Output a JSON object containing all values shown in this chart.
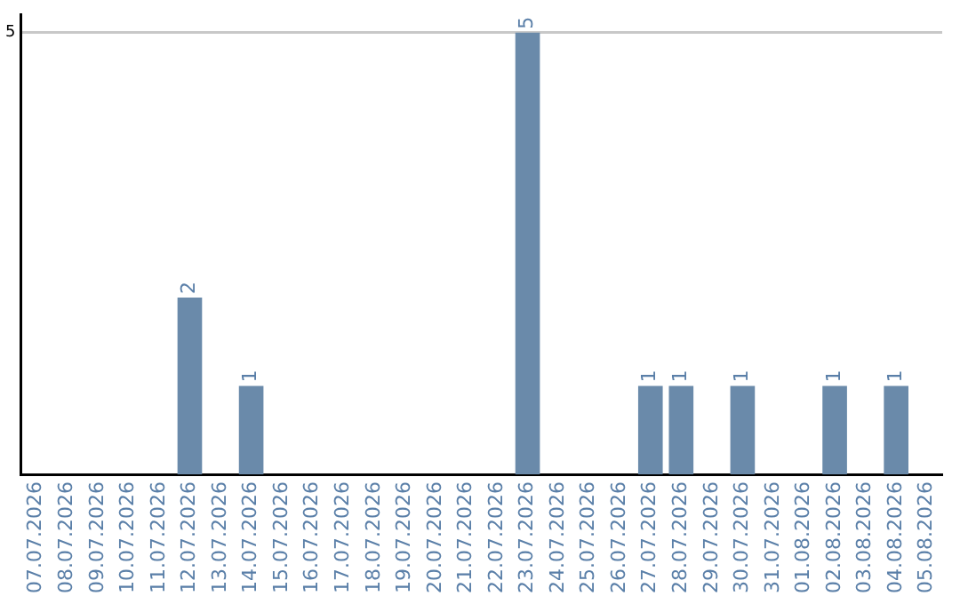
{
  "chart_data": {
    "type": "bar",
    "categories": [
      "07.07.2026",
      "08.07.2026",
      "09.07.2026",
      "10.07.2026",
      "11.07.2026",
      "12.07.2026",
      "13.07.2026",
      "14.07.2026",
      "15.07.2026",
      "16.07.2026",
      "17.07.2026",
      "18.07.2026",
      "19.07.2026",
      "20.07.2026",
      "21.07.2026",
      "22.07.2026",
      "23.07.2026",
      "24.07.2026",
      "25.07.2026",
      "26.07.2026",
      "27.07.2026",
      "28.07.2026",
      "29.07.2026",
      "30.07.2026",
      "31.07.2026",
      "01.08.2026",
      "02.08.2026",
      "03.08.2026",
      "04.08.2026",
      "05.08.2026"
    ],
    "values": [
      0,
      0,
      0,
      0,
      0,
      2,
      0,
      1,
      0,
      0,
      0,
      0,
      0,
      0,
      0,
      0,
      5,
      0,
      0,
      0,
      1,
      1,
      0,
      1,
      0,
      0,
      1,
      0,
      1,
      0
    ],
    "value_labels": [
      null,
      null,
      null,
      null,
      null,
      "2",
      null,
      "1",
      null,
      null,
      null,
      null,
      null,
      null,
      null,
      null,
      "5",
      null,
      null,
      null,
      "1",
      "1",
      null,
      "1",
      null,
      null,
      "1",
      null,
      "1",
      null
    ],
    "color": "#6a8aaa",
    "ylim": [
      0,
      5.2
    ],
    "yticks": [
      5
    ],
    "grid": "y",
    "legend": false
  }
}
